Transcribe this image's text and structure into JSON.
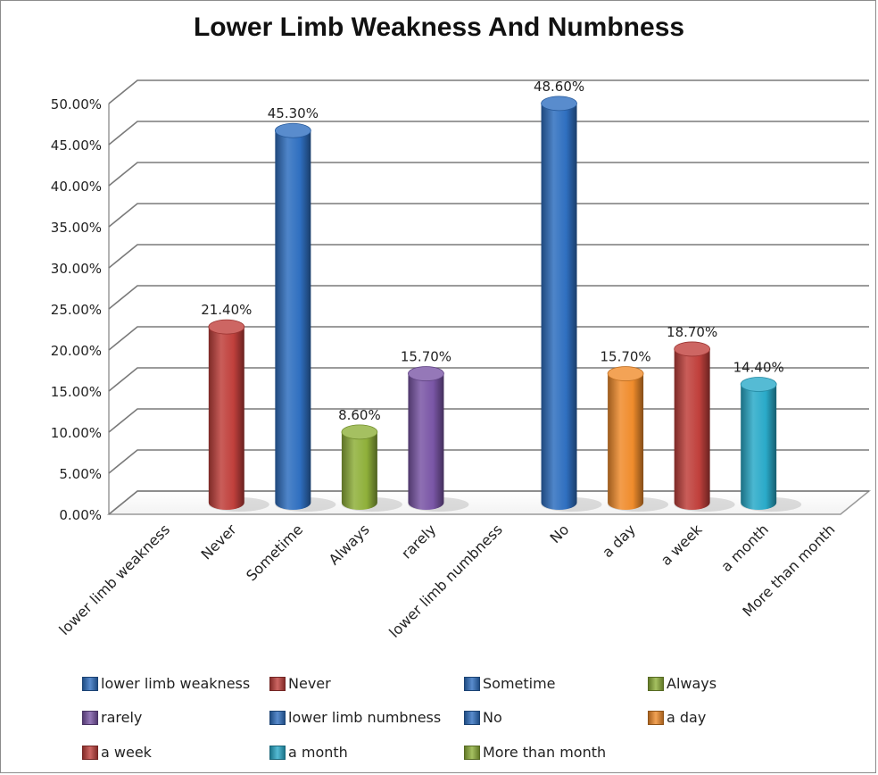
{
  "chart_data": {
    "type": "bar",
    "title": "Lower Limb Weakness And Numbness",
    "categories": [
      "lower limb weakness",
      "Never",
      "Sometime",
      "Always",
      "rarely",
      "lower limb  numbness",
      "No",
      "a day",
      "a week",
      "a month",
      "More than month"
    ],
    "values": [
      null,
      21.4,
      45.3,
      8.6,
      15.7,
      null,
      48.6,
      15.7,
      18.7,
      14.4,
      null
    ],
    "data_labels": [
      "",
      "21.40%",
      "45.30%",
      "8.60%",
      "15.70%",
      "",
      "48.60%",
      "15.70%",
      "18.70%",
      "14.40%",
      ""
    ],
    "colors": [
      "#2f6fc0",
      "#c0403c",
      "#2f6fc0",
      "#8fb03a",
      "#7a56a6",
      "#2f6fc0",
      "#2f6fc0",
      "#f08c2c",
      "#c0403c",
      "#2aaac9",
      "#8fb03a"
    ],
    "ylim": [
      0,
      50
    ],
    "yticks": [
      "0.00%",
      "5.00%",
      "10.00%",
      "15.00%",
      "20.00%",
      "25.00%",
      "30.00%",
      "35.00%",
      "40.00%",
      "45.00%",
      "50.00%"
    ],
    "grid": true,
    "legend_placement": "bottom",
    "legend": [
      "lower limb weakness",
      "Never",
      "Sometime",
      "Always",
      "rarely",
      "lower limb  numbness",
      "No",
      "a day",
      "a week",
      "a month",
      "More than month"
    ]
  }
}
